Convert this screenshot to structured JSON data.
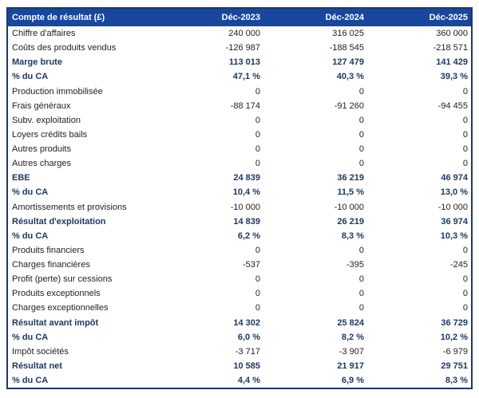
{
  "table": {
    "title_column": "Compte de résultat (£)",
    "columns": [
      "Déc-2023",
      "Déc-2024",
      "Déc-2025"
    ],
    "rows": [
      {
        "label": "Chiffre d'affaires",
        "values": [
          "240 000",
          "316 025",
          "360 000"
        ],
        "bold": false
      },
      {
        "label": "Coûts des produits vendus",
        "values": [
          "-126 987",
          "-188 545",
          "-218 571"
        ],
        "bold": false
      },
      {
        "label": "Marge brute",
        "values": [
          "113 013",
          "127 479",
          "141 429"
        ],
        "bold": true
      },
      {
        "label": "% du CA",
        "values": [
          "47,1 %",
          "40,3 %",
          "39,3 %"
        ],
        "bold": true
      },
      {
        "label": "Production immobilisée",
        "values": [
          "0",
          "0",
          "0"
        ],
        "bold": false
      },
      {
        "label": "Frais généraux",
        "values": [
          "-88 174",
          "-91 260",
          "-94 455"
        ],
        "bold": false
      },
      {
        "label": "Subv. exploitation",
        "values": [
          "0",
          "0",
          "0"
        ],
        "bold": false
      },
      {
        "label": "Loyers crédits bails",
        "values": [
          "0",
          "0",
          "0"
        ],
        "bold": false
      },
      {
        "label": "Autres produits",
        "values": [
          "0",
          "0",
          "0"
        ],
        "bold": false
      },
      {
        "label": "Autres charges",
        "values": [
          "0",
          "0",
          "0"
        ],
        "bold": false
      },
      {
        "label": "EBE",
        "values": [
          "24 839",
          "36 219",
          "46 974"
        ],
        "bold": true
      },
      {
        "label": "% du CA",
        "values": [
          "10,4 %",
          "11,5 %",
          "13,0 %"
        ],
        "bold": true
      },
      {
        "label": "Amortissements et provisions",
        "values": [
          "-10 000",
          "-10 000",
          "-10 000"
        ],
        "bold": false
      },
      {
        "label": "Résultat d'exploitation",
        "values": [
          "14 839",
          "26 219",
          "36 974"
        ],
        "bold": true
      },
      {
        "label": "% du CA",
        "values": [
          "6,2 %",
          "8,3 %",
          "10,3 %"
        ],
        "bold": true
      },
      {
        "label": "Produits financiers",
        "values": [
          "0",
          "0",
          "0"
        ],
        "bold": false
      },
      {
        "label": "Charges financières",
        "values": [
          "-537",
          "-395",
          "-245"
        ],
        "bold": false
      },
      {
        "label": "Profit (perte) sur cessions",
        "values": [
          "0",
          "0",
          "0"
        ],
        "bold": false
      },
      {
        "label": "Produits exceptionnels",
        "values": [
          "0",
          "0",
          "0"
        ],
        "bold": false
      },
      {
        "label": "Charges exceptionnelles",
        "values": [
          "0",
          "0",
          "0"
        ],
        "bold": false
      },
      {
        "label": "Résultat avant impôt",
        "values": [
          "14 302",
          "25 824",
          "36 729"
        ],
        "bold": true
      },
      {
        "label": "% du CA",
        "values": [
          "6,0 %",
          "8,2 %",
          "10,2 %"
        ],
        "bold": true
      },
      {
        "label": "Impôt sociétés",
        "values": [
          "-3 717",
          "-3 907",
          "-6 979"
        ],
        "bold": false
      },
      {
        "label": "Résultat net",
        "values": [
          "10 585",
          "21 917",
          "29 751"
        ],
        "bold": true
      },
      {
        "label": "% du CA",
        "values": [
          "4,4 %",
          "6,9 %",
          "8,3 %"
        ],
        "bold": true
      }
    ],
    "colors": {
      "header_bg": "#17479E",
      "header_text": "#FFFFFF",
      "bold_text": "#1F3864",
      "normal_text": "#1F1F1F",
      "border": "#1F3864",
      "page_bg": "#FFFFFF"
    }
  },
  "chart_data": {
    "type": "table",
    "title": "Compte de résultat (£)",
    "categories": [
      "Déc-2023",
      "Déc-2024",
      "Déc-2025"
    ],
    "unit": "£",
    "series": [
      {
        "name": "Chiffre d'affaires",
        "values": [
          240000,
          316025,
          360000
        ]
      },
      {
        "name": "Coûts des produits vendus",
        "values": [
          -126987,
          -188545,
          -218571
        ]
      },
      {
        "name": "Marge brute",
        "values": [
          113013,
          127479,
          141429
        ]
      },
      {
        "name": "Marge brute % du CA",
        "values": [
          47.1,
          40.3,
          39.3
        ],
        "unit": "%"
      },
      {
        "name": "Production immobilisée",
        "values": [
          0,
          0,
          0
        ]
      },
      {
        "name": "Frais généraux",
        "values": [
          -88174,
          -91260,
          -94455
        ]
      },
      {
        "name": "Subv. exploitation",
        "values": [
          0,
          0,
          0
        ]
      },
      {
        "name": "Loyers crédits bails",
        "values": [
          0,
          0,
          0
        ]
      },
      {
        "name": "Autres produits",
        "values": [
          0,
          0,
          0
        ]
      },
      {
        "name": "Autres charges",
        "values": [
          0,
          0,
          0
        ]
      },
      {
        "name": "EBE",
        "values": [
          24839,
          36219,
          46974
        ]
      },
      {
        "name": "EBE % du CA",
        "values": [
          10.4,
          11.5,
          13.0
        ],
        "unit": "%"
      },
      {
        "name": "Amortissements et provisions",
        "values": [
          -10000,
          -10000,
          -10000
        ]
      },
      {
        "name": "Résultat d'exploitation",
        "values": [
          14839,
          26219,
          36974
        ]
      },
      {
        "name": "Résultat d'exploitation % du CA",
        "values": [
          6.2,
          8.3,
          10.3
        ],
        "unit": "%"
      },
      {
        "name": "Produits financiers",
        "values": [
          0,
          0,
          0
        ]
      },
      {
        "name": "Charges financières",
        "values": [
          -537,
          -395,
          -245
        ]
      },
      {
        "name": "Profit (perte) sur cessions",
        "values": [
          0,
          0,
          0
        ]
      },
      {
        "name": "Produits exceptionnels",
        "values": [
          0,
          0,
          0
        ]
      },
      {
        "name": "Charges exceptionnelles",
        "values": [
          0,
          0,
          0
        ]
      },
      {
        "name": "Résultat avant impôt",
        "values": [
          14302,
          25824,
          36729
        ]
      },
      {
        "name": "Résultat avant impôt % du CA",
        "values": [
          6.0,
          8.2,
          10.2
        ],
        "unit": "%"
      },
      {
        "name": "Impôt sociétés",
        "values": [
          -3717,
          -3907,
          -6979
        ]
      },
      {
        "name": "Résultat net",
        "values": [
          10585,
          21917,
          29751
        ]
      },
      {
        "name": "Résultat net % du CA",
        "values": [
          4.4,
          6.9,
          8.3
        ],
        "unit": "%"
      }
    ]
  }
}
